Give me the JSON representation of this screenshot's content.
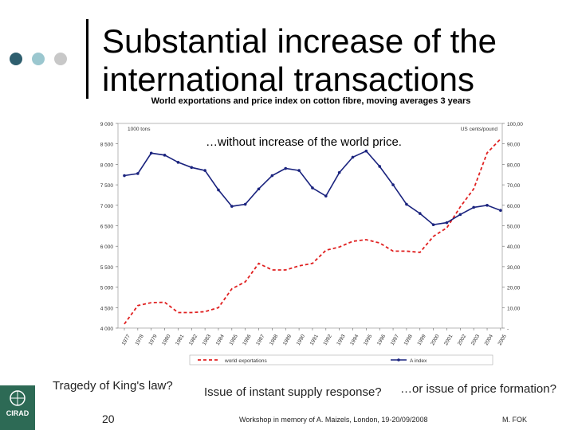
{
  "slide": {
    "title_line1": "Substantial increase of the",
    "title_line2": "international transactions",
    "annotation": "…without increase of the world price.",
    "caption_left": "Tragedy of King's law?",
    "caption_mid": "Issue of instant supply response?",
    "caption_right": "…or issue of price formation?",
    "footer_text": "Workshop in memory of A. Maizels, London, 19-20/09/2008",
    "footer_author": "M. FOK",
    "page_number": "20",
    "logo_text": "CIRAD",
    "logo_icon": "cirad-logo-icon",
    "colors": {
      "dot1": "#2e5e6e",
      "dot2": "#9bc7cf",
      "dot3": "#c8c8c8",
      "export_line": "#e02020",
      "index_line": "#1a237e"
    }
  },
  "chart_data": {
    "type": "line",
    "title": "World exportations and price index on cotton fibre, moving averages 3 years",
    "left_unit": "1000 tons",
    "right_unit": "US cents/pound",
    "x": [
      "1977",
      "1978",
      "1979",
      "1980",
      "1981",
      "1982",
      "1983",
      "1984",
      "1985",
      "1986",
      "1987",
      "1988",
      "1989",
      "1990",
      "1991",
      "1992",
      "1993",
      "1994",
      "1995",
      "1996",
      "1997",
      "1998",
      "1999",
      "2000",
      "2001",
      "2002",
      "2003",
      "2004",
      "2005"
    ],
    "y_left_ticks": [
      "9 000",
      "8 500",
      "8 000",
      "7 500",
      "7 000",
      "6 500",
      "6 000",
      "5 500",
      "5 000",
      "4 500",
      "4 000"
    ],
    "y_right_ticks": [
      "100,00",
      "90,00",
      "80,00",
      "70,00",
      "60,00",
      "50,00",
      "40,00",
      "30,00",
      "20,00",
      "10,00",
      "-"
    ],
    "ylim_left": [
      4000,
      9000
    ],
    "ylim_right": [
      0,
      100
    ],
    "legend_position": "bottom",
    "grid": false,
    "series": [
      {
        "name": "world exportations",
        "axis": "left",
        "style": "dashed",
        "values": [
          4100,
          4550,
          4620,
          4630,
          4380,
          4380,
          4400,
          4500,
          4960,
          5130,
          5580,
          5420,
          5420,
          5520,
          5580,
          5900,
          5980,
          6120,
          6160,
          6080,
          5880,
          5880,
          5850,
          6240,
          6450,
          6960,
          7400,
          8280,
          8620
        ]
      },
      {
        "name": "A index",
        "axis": "right",
        "style": "solid",
        "values": [
          74.5,
          75.5,
          85.5,
          84.5,
          81.0,
          78.5,
          77.0,
          67.5,
          59.5,
          60.5,
          68.0,
          74.5,
          78.0,
          77.0,
          68.5,
          64.5,
          76.0,
          83.5,
          86.5,
          79.0,
          70.0,
          60.5,
          56.0,
          50.5,
          51.5,
          55.5,
          59.0,
          60.0,
          57.5
        ]
      }
    ]
  }
}
